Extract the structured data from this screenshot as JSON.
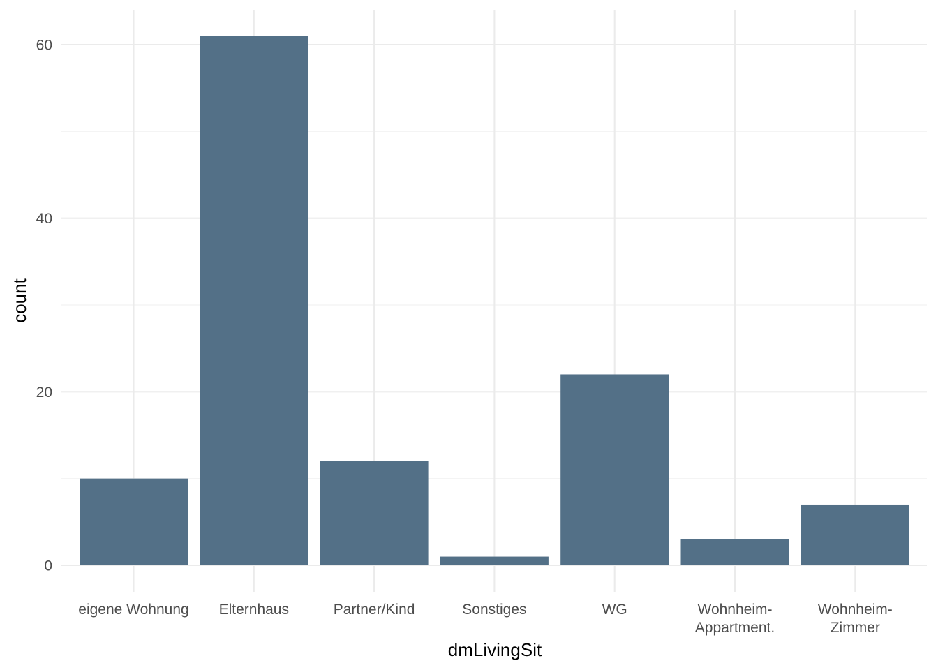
{
  "chart_data": {
    "type": "bar",
    "xlabel": "dmLivingSit",
    "ylabel": "count",
    "categories": [
      [
        "eigene Wohnung"
      ],
      [
        "Elternhaus"
      ],
      [
        "Partner/Kind"
      ],
      [
        "Sonstiges"
      ],
      [
        "WG"
      ],
      [
        "Wohnheim-",
        "Appartment."
      ],
      [
        "Wohnheim-",
        "Zimmer"
      ]
    ],
    "values": [
      10,
      61,
      12,
      1,
      22,
      3,
      7
    ],
    "ylim": [
      0,
      62
    ],
    "y_ticks": [
      0,
      20,
      40,
      60
    ],
    "y_minor_ticks": [
      10,
      30,
      50
    ],
    "grid": true,
    "legend": "none",
    "colors": {
      "bar": "#537087",
      "grid_major": "#ebebeb",
      "grid_minor": "#f2f2f2",
      "tick_text": "#4d4d4d",
      "title_text": "#000000"
    }
  }
}
